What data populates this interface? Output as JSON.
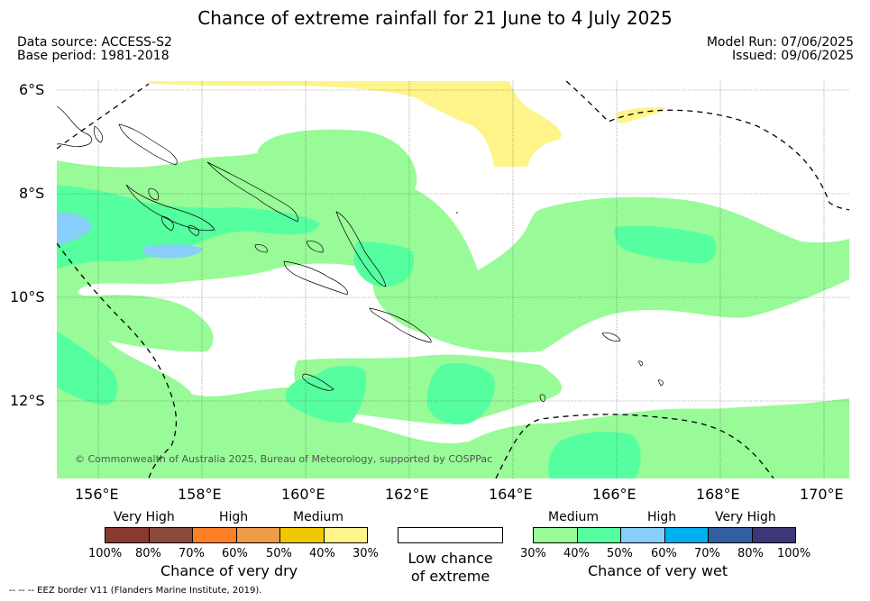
{
  "title": "Chance of extreme rainfall for 21 June to 4 July 2025",
  "data_source": "Data source: ACCESS-S2",
  "base_period": "Base period: 1981-2018",
  "model_run": "Model Run: 07/06/2025",
  "issued": "Issued: 09/06/2025",
  "copyright": "© Commonwealth of Australia 2025, Bureau of Meteorology, supported by COSPPac",
  "footnote": "--  --  -- EEZ border V11 (Flanders Marine Institute, 2019).",
  "lat_labels": [
    "6°S",
    "8°S",
    "10°S",
    "12°S"
  ],
  "lon_labels": [
    "156°E",
    "158°E",
    "160°E",
    "162°E",
    "164°E",
    "166°E",
    "168°E",
    "170°E"
  ],
  "legend_dry": {
    "categories": [
      "Very High",
      "High",
      "Medium"
    ],
    "ticks": [
      "100%",
      "80%",
      "70%",
      "60%",
      "50%",
      "40%",
      "30%"
    ],
    "title": "Chance of very dry",
    "colors": [
      "#8b3a30",
      "#8b4a3c",
      "#ff7f27",
      "#ee9b4a",
      "#f0c800",
      "#fff48a"
    ]
  },
  "legend_low": {
    "line1": "Low chance",
    "line2": "of extreme",
    "color": "#ffffff"
  },
  "legend_wet": {
    "categories": [
      "Medium",
      "High",
      "Very High"
    ],
    "ticks": [
      "30%",
      "40%",
      "50%",
      "60%",
      "70%",
      "80%",
      "100%"
    ],
    "title": "Chance of very wet",
    "colors": [
      "#98fb98",
      "#55ffa0",
      "#87cefa",
      "#00b0f0",
      "#3060a0",
      "#3c3878"
    ]
  },
  "colors": {
    "medium_wet": "#98fb98",
    "high_wet": "#55ffa0",
    "very_high_wet_low": "#87cefa",
    "medium_dry": "#fff48a"
  }
}
